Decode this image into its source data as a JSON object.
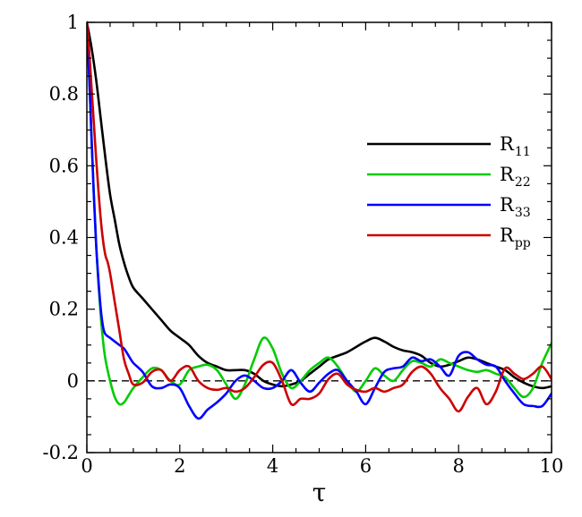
{
  "chart_data": {
    "type": "line",
    "title": "",
    "xlabel": "τ",
    "ylabel": "",
    "xlim": [
      0,
      10
    ],
    "ylim": [
      -0.2,
      1
    ],
    "x_ticks": [
      0,
      2,
      4,
      6,
      8,
      10
    ],
    "x_tick_labels": [
      "0",
      "2",
      "4",
      "6",
      "8",
      "10"
    ],
    "y_ticks": [
      -0.2,
      0,
      0.2,
      0.4,
      0.6,
      0.8,
      1
    ],
    "y_tick_labels": [
      "-0.2",
      "0",
      "0.2",
      "0.4",
      "0.6",
      "0.8",
      "1"
    ],
    "grid": false,
    "legend_position": "right",
    "reference_line": {
      "y": 0,
      "style": "dashed",
      "color": "#000000"
    },
    "series": [
      {
        "label": "R",
        "subscript": "11",
        "color": "#000000",
        "x": [
          0,
          0.1,
          0.2,
          0.3,
          0.4,
          0.5,
          0.6,
          0.7,
          0.8,
          0.9,
          1.0,
          1.2,
          1.4,
          1.6,
          1.8,
          2.0,
          2.2,
          2.4,
          2.6,
          2.8,
          3.0,
          3.2,
          3.4,
          3.6,
          3.8,
          4.0,
          4.2,
          4.4,
          4.6,
          4.8,
          5.0,
          5.2,
          5.4,
          5.6,
          5.8,
          6.0,
          6.2,
          6.4,
          6.6,
          6.8,
          7.0,
          7.2,
          7.4,
          7.6,
          7.8,
          8.0,
          8.2,
          8.4,
          8.6,
          8.8,
          9.0,
          9.2,
          9.4,
          9.6,
          9.8,
          10.0
        ],
        "y": [
          1.0,
          0.93,
          0.84,
          0.73,
          0.62,
          0.52,
          0.45,
          0.38,
          0.33,
          0.29,
          0.26,
          0.23,
          0.2,
          0.17,
          0.14,
          0.12,
          0.1,
          0.07,
          0.05,
          0.04,
          0.03,
          0.03,
          0.03,
          0.02,
          0.0,
          -0.01,
          -0.015,
          -0.01,
          0.0,
          0.02,
          0.04,
          0.06,
          0.07,
          0.08,
          0.095,
          0.11,
          0.12,
          0.11,
          0.095,
          0.085,
          0.08,
          0.07,
          0.05,
          0.04,
          0.045,
          0.055,
          0.065,
          0.06,
          0.05,
          0.04,
          0.03,
          0.01,
          -0.005,
          -0.015,
          -0.02,
          -0.015
        ]
      },
      {
        "label": "R",
        "subscript": "22",
        "color": "#00cc00",
        "x": [
          0,
          0.05,
          0.1,
          0.15,
          0.2,
          0.25,
          0.3,
          0.35,
          0.4,
          0.5,
          0.6,
          0.7,
          0.8,
          0.9,
          1.0,
          1.2,
          1.4,
          1.6,
          1.8,
          2.0,
          2.2,
          2.4,
          2.6,
          2.8,
          3.0,
          3.2,
          3.4,
          3.6,
          3.8,
          4.0,
          4.2,
          4.4,
          4.6,
          4.8,
          5.0,
          5.2,
          5.4,
          5.6,
          5.8,
          6.0,
          6.2,
          6.4,
          6.6,
          6.8,
          7.0,
          7.2,
          7.4,
          7.6,
          7.8,
          8.0,
          8.2,
          8.4,
          8.6,
          8.8,
          9.0,
          9.2,
          9.4,
          9.6,
          9.8,
          10.0
        ],
        "y": [
          1.0,
          0.85,
          0.68,
          0.52,
          0.38,
          0.27,
          0.18,
          0.11,
          0.06,
          0.0,
          -0.045,
          -0.065,
          -0.06,
          -0.04,
          -0.02,
          0.01,
          0.035,
          0.03,
          0.0,
          -0.01,
          0.03,
          0.04,
          0.045,
          0.03,
          -0.01,
          -0.05,
          -0.01,
          0.06,
          0.12,
          0.09,
          0.02,
          -0.02,
          0.0,
          0.03,
          0.05,
          0.065,
          0.04,
          0.0,
          -0.03,
          0.0,
          0.035,
          0.015,
          0.0,
          0.03,
          0.055,
          0.05,
          0.04,
          0.06,
          0.05,
          0.04,
          0.03,
          0.025,
          0.03,
          0.02,
          0.01,
          -0.02,
          -0.045,
          -0.02,
          0.05,
          0.105
        ]
      },
      {
        "label": "R",
        "subscript": "33",
        "color": "#0000ff",
        "x": [
          0,
          0.05,
          0.1,
          0.15,
          0.2,
          0.25,
          0.3,
          0.35,
          0.4,
          0.5,
          0.6,
          0.7,
          0.8,
          0.9,
          1.0,
          1.2,
          1.4,
          1.6,
          1.8,
          2.0,
          2.2,
          2.4,
          2.6,
          2.8,
          3.0,
          3.2,
          3.4,
          3.6,
          3.8,
          4.0,
          4.2,
          4.4,
          4.6,
          4.8,
          5.0,
          5.2,
          5.4,
          5.6,
          5.8,
          6.0,
          6.2,
          6.4,
          6.6,
          6.8,
          7.0,
          7.2,
          7.4,
          7.6,
          7.8,
          8.0,
          8.2,
          8.4,
          8.6,
          8.8,
          9.0,
          9.2,
          9.4,
          9.6,
          9.8,
          10.0
        ],
        "y": [
          1.0,
          0.85,
          0.68,
          0.52,
          0.38,
          0.28,
          0.2,
          0.15,
          0.13,
          0.12,
          0.11,
          0.1,
          0.09,
          0.07,
          0.05,
          0.025,
          -0.015,
          -0.02,
          -0.01,
          -0.02,
          -0.07,
          -0.105,
          -0.08,
          -0.06,
          -0.035,
          0.0,
          0.015,
          0.0,
          -0.02,
          -0.02,
          0.0,
          0.03,
          -0.005,
          -0.03,
          -0.005,
          0.02,
          0.03,
          0.0,
          -0.03,
          -0.065,
          -0.02,
          0.025,
          0.035,
          0.04,
          0.065,
          0.055,
          0.06,
          0.04,
          0.015,
          0.07,
          0.08,
          0.06,
          0.045,
          0.04,
          0.0,
          -0.035,
          -0.065,
          -0.07,
          -0.07,
          -0.035
        ]
      },
      {
        "label": "R",
        "subscript": "pp",
        "color": "#cc0000",
        "x": [
          0,
          0.05,
          0.1,
          0.15,
          0.2,
          0.25,
          0.3,
          0.35,
          0.4,
          0.45,
          0.5,
          0.6,
          0.7,
          0.8,
          0.9,
          1.0,
          1.2,
          1.4,
          1.6,
          1.8,
          2.0,
          2.2,
          2.4,
          2.6,
          2.8,
          3.0,
          3.2,
          3.4,
          3.6,
          3.8,
          4.0,
          4.2,
          4.4,
          4.6,
          4.8,
          5.0,
          5.2,
          5.4,
          5.6,
          5.8,
          6.0,
          6.2,
          6.4,
          6.6,
          6.8,
          7.0,
          7.2,
          7.4,
          7.6,
          7.8,
          8.0,
          8.2,
          8.4,
          8.6,
          8.8,
          9.0,
          9.2,
          9.4,
          9.6,
          9.8,
          10.0
        ],
        "y": [
          1.0,
          0.92,
          0.82,
          0.72,
          0.62,
          0.53,
          0.45,
          0.39,
          0.35,
          0.33,
          0.3,
          0.22,
          0.14,
          0.06,
          0.02,
          -0.01,
          -0.005,
          0.025,
          0.03,
          0.0,
          0.03,
          0.04,
          0.0,
          -0.02,
          -0.025,
          -0.02,
          -0.03,
          -0.02,
          0.01,
          0.045,
          0.05,
          0.0,
          -0.065,
          -0.05,
          -0.05,
          -0.035,
          0.005,
          0.02,
          -0.01,
          -0.025,
          -0.03,
          -0.02,
          -0.03,
          -0.02,
          -0.01,
          0.025,
          0.04,
          0.02,
          -0.02,
          -0.05,
          -0.085,
          -0.045,
          -0.02,
          -0.065,
          -0.03,
          0.035,
          0.02,
          0.005,
          0.02,
          0.04,
          0.005
        ]
      }
    ]
  }
}
